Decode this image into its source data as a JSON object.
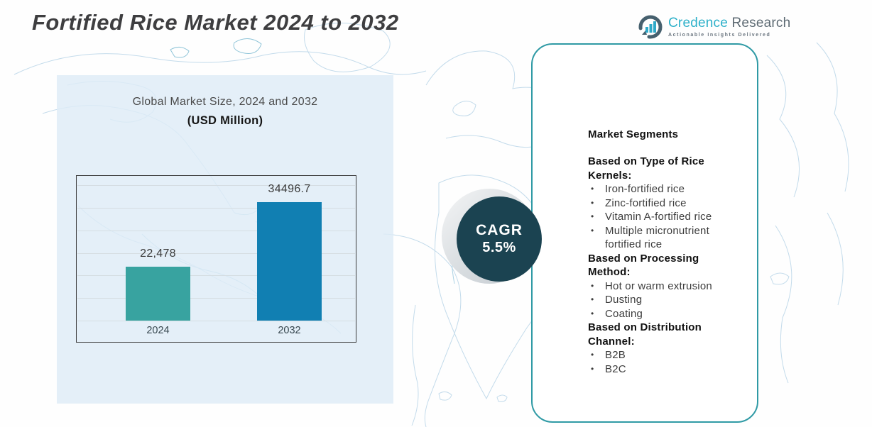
{
  "page": {
    "title": "Fortified Rice Market 2024 to 2032"
  },
  "logo": {
    "brand_primary": "Credence",
    "brand_secondary": "Research",
    "tagline": "Actionable Insights Delivered"
  },
  "chart": {
    "title_line1": "Global Market Size, 2024 and 2032",
    "title_line2": "(USD Million)",
    "bars": [
      {
        "year": "2024",
        "label": "22,478",
        "color": "#38a3a0"
      },
      {
        "year": "2032",
        "label": "34496.7",
        "color": "#117fb2"
      }
    ]
  },
  "cagr": {
    "label": "CAGR",
    "value": "5.5%"
  },
  "segments": {
    "heading": "Market Segments",
    "bullet_char": "•",
    "groups": [
      {
        "title": "Based on Type of Rice Kernels:",
        "items": [
          "Iron-fortified rice",
          "Zinc-fortified rice",
          "Vitamin A-fortified rice",
          "Multiple micronutrient fortified rice"
        ]
      },
      {
        "title": "Based on Processing Method:",
        "items": [
          "Hot or warm extrusion",
          "Dusting",
          "Coating"
        ]
      },
      {
        "title": "Based on Distribution Channel:",
        "items": [
          "B2B",
          "B2C"
        ]
      }
    ]
  },
  "colors": {
    "bar_2024": "#38a3a0",
    "bar_2032": "#117fb2",
    "cagr_circle": "#1b4351",
    "panel_border": "#2f9aa5",
    "brand_teal": "#2cb0c9",
    "map_stroke": "#c3dbeb",
    "backdrop": "#dfecf6"
  },
  "chart_data": {
    "type": "bar",
    "title": "Global Market Size, 2024 and 2032",
    "subtitle": "(USD Million)",
    "unit": "USD Million",
    "categories": [
      "2024",
      "2032"
    ],
    "values": [
      22478,
      34496.7
    ],
    "value_labels": [
      "22,478",
      "34496.7"
    ],
    "bar_colors": [
      "#38a3a0",
      "#117fb2"
    ],
    "cagr_percent": 5.5,
    "grid": true,
    "legend": false,
    "ylim": [
      0,
      40000
    ]
  }
}
